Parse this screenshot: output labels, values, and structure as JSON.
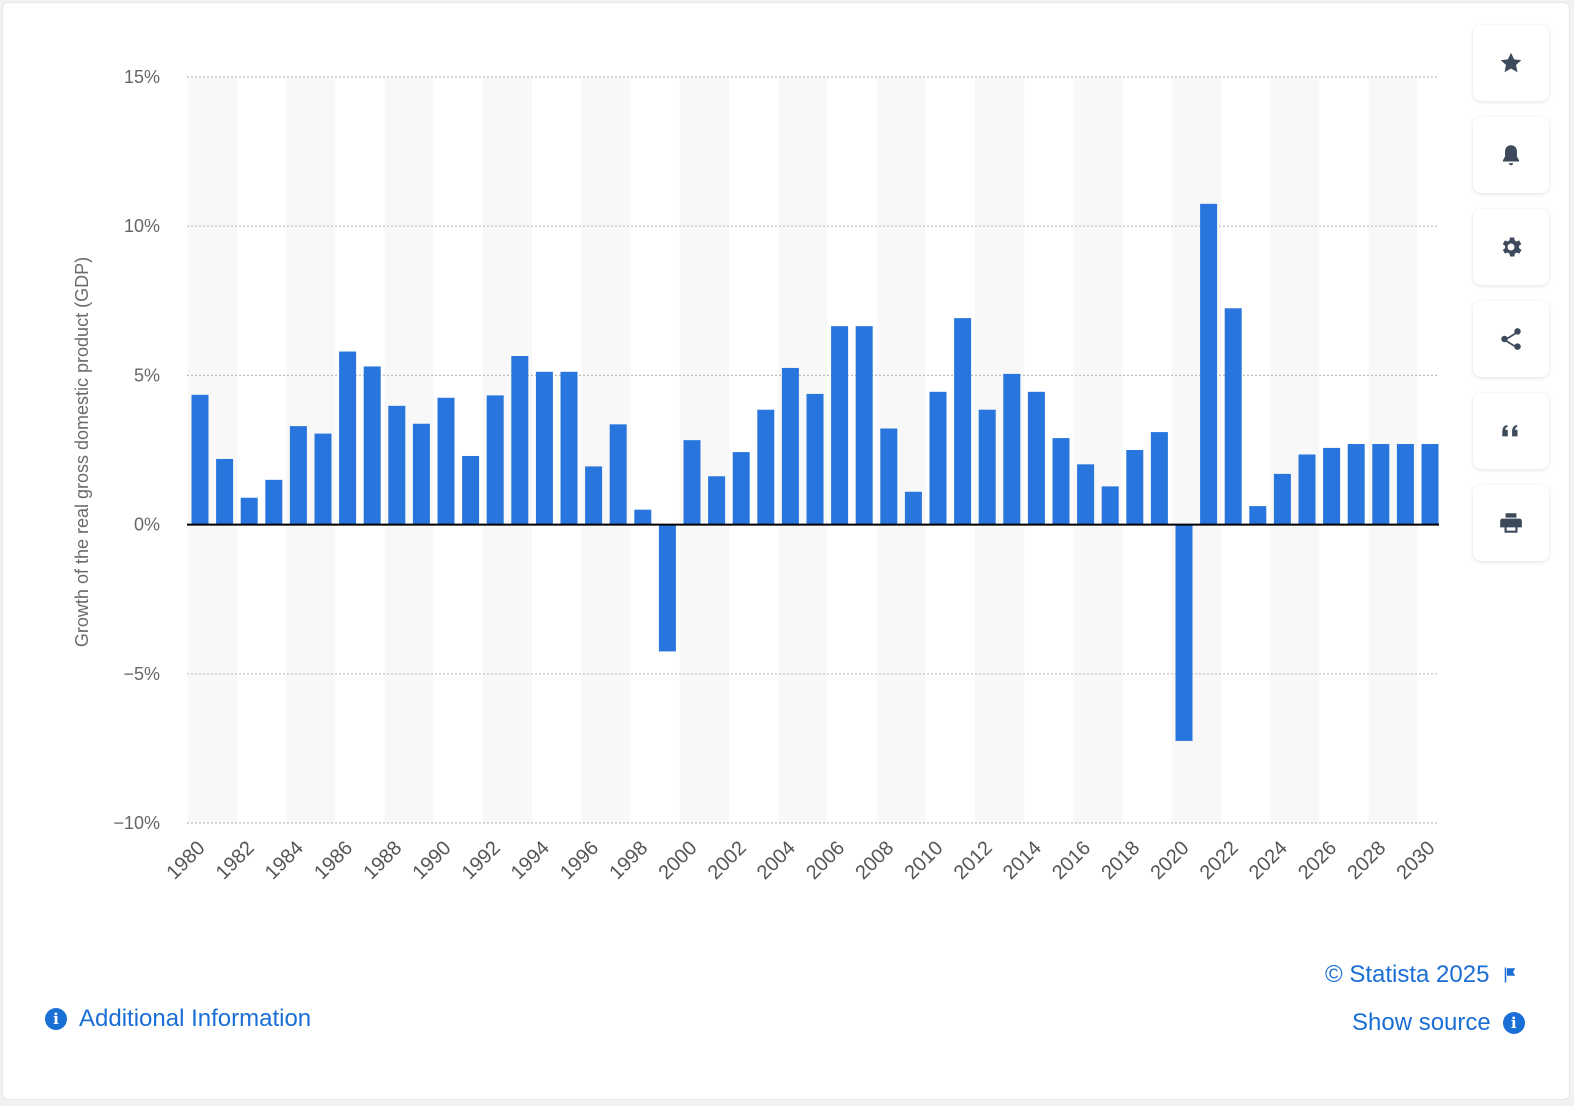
{
  "chart_data": {
    "type": "bar",
    "ylabel": "Growth of the real gross domestic product (GDP)",
    "xlabel": "",
    "ylim": [
      -10,
      15
    ],
    "yticks": [
      15,
      10,
      5,
      0,
      -5,
      -10
    ],
    "ytick_labels": [
      "15%",
      "10%",
      "5%",
      "0%",
      "−5%",
      "−10%"
    ],
    "x_tick_labels": [
      "1980",
      "1982",
      "1984",
      "1986",
      "1988",
      "1990",
      "1992",
      "1994",
      "1996",
      "1998",
      "2000",
      "2002",
      "2004",
      "2006",
      "2008",
      "2010",
      "2012",
      "2014",
      "2016",
      "2018",
      "2020",
      "2022",
      "2024",
      "2026",
      "2028",
      "2030"
    ],
    "categories": [
      "1980",
      "1981",
      "1982",
      "1983",
      "1984",
      "1985",
      "1986",
      "1987",
      "1988",
      "1989",
      "1990",
      "1991",
      "1992",
      "1993",
      "1994",
      "1995",
      "1996",
      "1997",
      "1998",
      "1999",
      "2000",
      "2001",
      "2002",
      "2003",
      "2004",
      "2005",
      "2006",
      "2007",
      "2008",
      "2009",
      "2010",
      "2011",
      "2012",
      "2013",
      "2014",
      "2015",
      "2016",
      "2017",
      "2018",
      "2019",
      "2020",
      "2021",
      "2022",
      "2023",
      "2024",
      "2025",
      "2026",
      "2027",
      "2028",
      "2029",
      "2030"
    ],
    "values": [
      4.35,
      2.2,
      0.9,
      1.5,
      3.3,
      3.05,
      5.8,
      5.3,
      3.98,
      3.38,
      4.25,
      2.3,
      4.33,
      5.65,
      5.12,
      5.12,
      1.95,
      3.36,
      0.5,
      -4.25,
      2.83,
      1.62,
      2.43,
      3.85,
      5.25,
      4.38,
      6.65,
      6.65,
      3.22,
      1.1,
      4.45,
      6.92,
      3.85,
      5.05,
      4.45,
      2.9,
      2.02,
      1.28,
      2.5,
      3.1,
      -7.25,
      10.75,
      7.25,
      0.62,
      1.7,
      2.35,
      2.57,
      2.7,
      2.7,
      2.7,
      2.7
    ],
    "grid": true,
    "bar_color": "#2876dd"
  },
  "toolbar": {
    "icons": [
      "star-icon",
      "bell-icon",
      "gear-icon",
      "share-icon",
      "quote-icon",
      "print-icon"
    ]
  },
  "footer": {
    "copyright": "© Statista 2025",
    "additional_info": "Additional Information",
    "show_source": "Show source"
  },
  "colors": {
    "link": "#1a6fd6",
    "bar": "#2876dd",
    "band": "#f8f8f8"
  }
}
